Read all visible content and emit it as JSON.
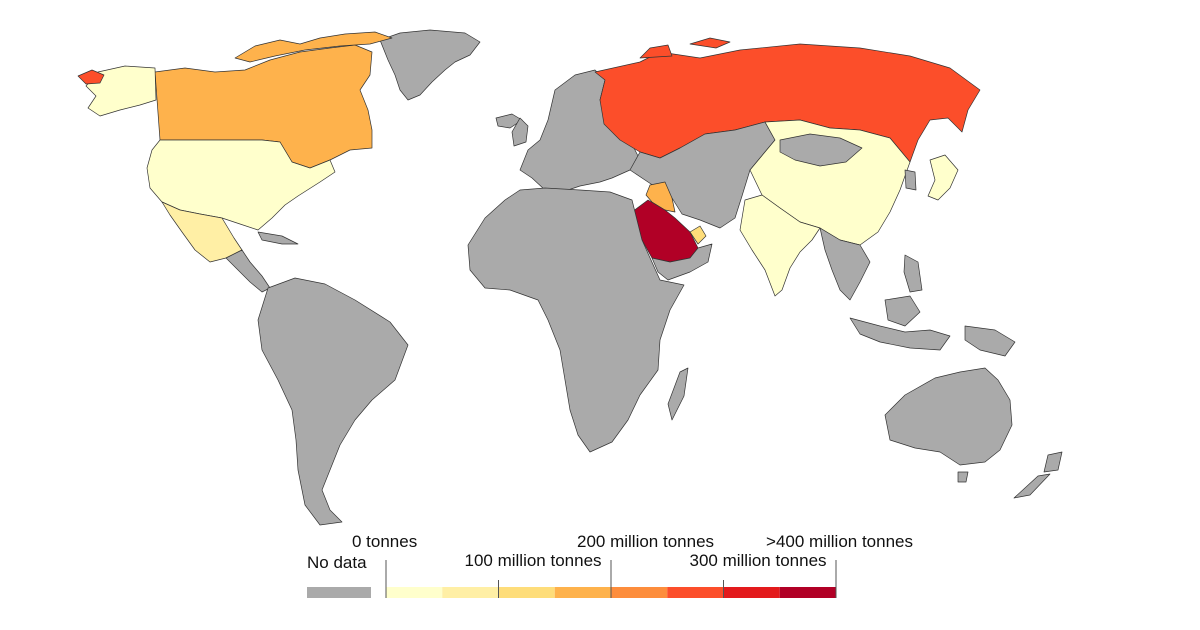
{
  "legend": {
    "no_data_label": "No data",
    "no_data_color": "#aaaaaa",
    "tick_labels": [
      "0 tonnes",
      "100 million tonnes",
      "200 million tonnes",
      "300 million tonnes",
      ">400 million tonnes"
    ],
    "bins": [
      {
        "color": "#ffffcc"
      },
      {
        "color": "#ffefa5"
      },
      {
        "color": "#fedd7a"
      },
      {
        "color": "#feb24c"
      },
      {
        "color": "#fd8d3c"
      },
      {
        "color": "#fc4e2a"
      },
      {
        "color": "#e31a1c"
      },
      {
        "color": "#b10026"
      }
    ]
  },
  "regions": {
    "canada": {
      "color": "#feb24c"
    },
    "united_states": {
      "color": "#ffffcc"
    },
    "mexico": {
      "color": "#ffefa5"
    },
    "greenland": {
      "color": "#aaaaaa"
    },
    "russia": {
      "color": "#fc4e2a"
    },
    "china": {
      "color": "#ffffcc"
    },
    "india": {
      "color": "#ffffcc"
    },
    "japan": {
      "color": "#ffffcc"
    },
    "saudi_arabia": {
      "color": "#b10026"
    },
    "iraq": {
      "color": "#feb24c"
    },
    "uae": {
      "color": "#fedd7a"
    },
    "no_data": {
      "color": "#aaaaaa"
    }
  }
}
